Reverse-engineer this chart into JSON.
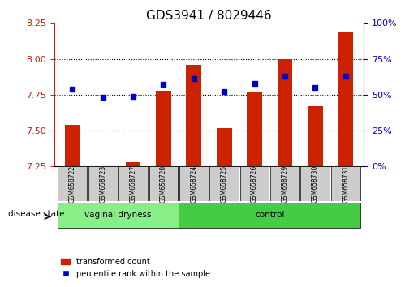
{
  "title": "GDS3941 / 8029446",
  "samples": [
    "GSM658722",
    "GSM658723",
    "GSM658727",
    "GSM658728",
    "GSM658724",
    "GSM658725",
    "GSM658726",
    "GSM658729",
    "GSM658730",
    "GSM658731"
  ],
  "red_values": [
    7.54,
    7.25,
    7.28,
    7.78,
    7.96,
    7.52,
    7.77,
    8.0,
    7.67,
    8.19
  ],
  "blue_values": [
    7.79,
    7.73,
    7.74,
    7.82,
    7.86,
    7.77,
    7.83,
    7.88,
    7.8,
    7.88
  ],
  "blue_percentile": [
    55,
    46,
    47,
    59,
    63,
    52,
    60,
    65,
    56,
    65
  ],
  "ylim_left": [
    7.25,
    8.25
  ],
  "ylim_right": [
    0,
    100
  ],
  "yticks_left": [
    7.25,
    7.5,
    7.75,
    8.0,
    8.25
  ],
  "yticks_right": [
    0,
    25,
    50,
    75,
    100
  ],
  "groups": [
    {
      "label": "vaginal dryness",
      "start": 0,
      "end": 4
    },
    {
      "label": "control",
      "start": 4,
      "end": 10
    }
  ],
  "bar_color": "#cc2200",
  "marker_color": "#0000cc",
  "bar_width": 0.5,
  "baseline": 7.25,
  "group_colors": [
    "#99ee99",
    "#44cc44"
  ],
  "legend_red": "transformed count",
  "legend_blue": "percentile rank within the sample",
  "disease_state_label": "disease state"
}
